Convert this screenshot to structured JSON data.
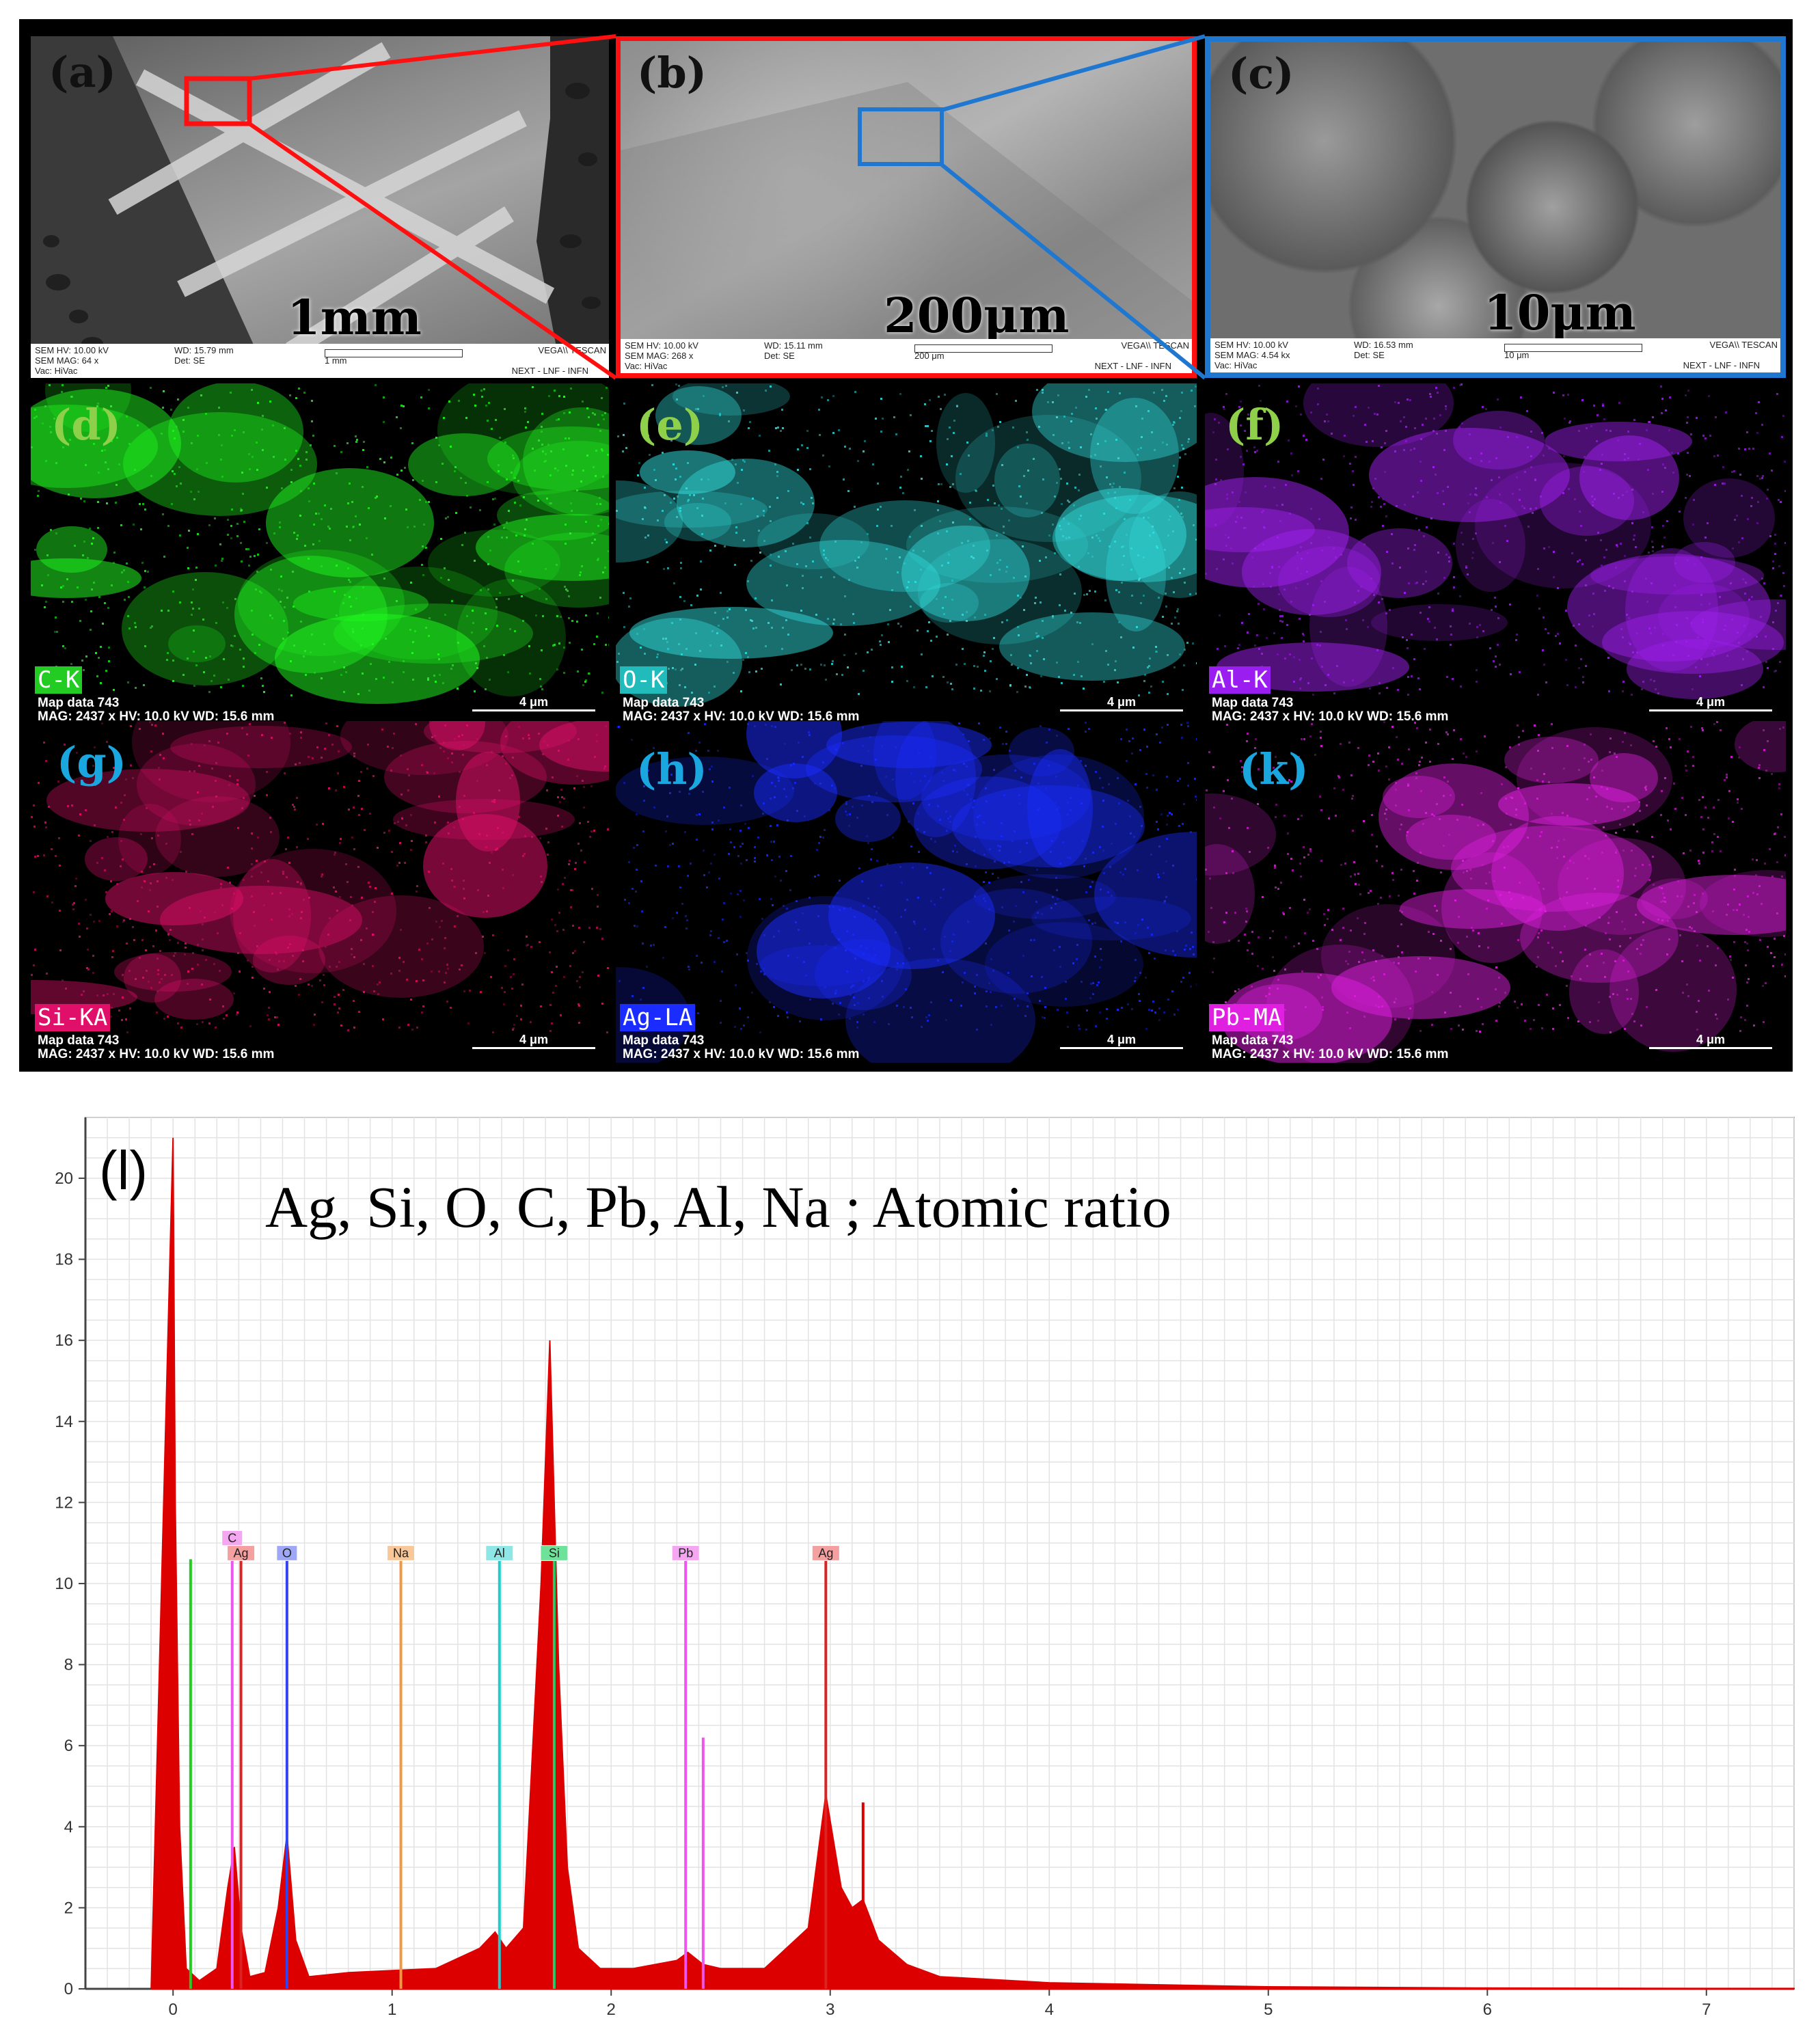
{
  "figure": {
    "panels_top": [
      {
        "label": "(a)",
        "scale": "1mm",
        "footer": [
          "SEM HV: 10.00 kV",
          "WD: 15.79 mm",
          "VEGA\\\\ TESCAN",
          "SEM MAG: 64 x",
          "Det: SE",
          "1 mm",
          "Vac: HiVac",
          "NEXT - LNF - INFN"
        ]
      },
      {
        "label": "(b)",
        "scale": "200μm",
        "footer": [
          "SEM HV: 10.00 kV",
          "WD: 15.11 mm",
          "VEGA\\\\ TESCAN",
          "SEM MAG: 268 x",
          "Det: SE",
          "200 μm",
          "Vac: HiVac",
          "NEXT - LNF - INFN"
        ]
      },
      {
        "label": "(c)",
        "scale": "10μm",
        "footer": [
          "SEM HV: 10.00 kV",
          "WD: 16.53 mm",
          "VEGA\\\\ TESCAN",
          "SEM MAG: 4.54 kx",
          "Det: SE",
          "10 μm",
          "Vac: HiVac",
          "NEXT - LNF - INFN"
        ]
      }
    ],
    "maps": [
      {
        "label": "(d)",
        "element": "C-K",
        "color": "#22ff22",
        "label_color": "#8fd04a",
        "tag_bg": "#22cc22"
      },
      {
        "label": "(e)",
        "element": "O-K",
        "color": "#33e0e0",
        "label_color": "#8fd04a",
        "tag_bg": "#22bbbb"
      },
      {
        "label": "(f)",
        "element": "Al-K",
        "color": "#a020f0",
        "label_color": "#8fd04a",
        "tag_bg": "#9a1ef0"
      },
      {
        "label": "(g)",
        "element": "Si-KA",
        "color": "#e0106a",
        "label_color": "#1aa7e0",
        "tag_bg": "#e0106a"
      },
      {
        "label": "(h)",
        "element": "Ag-LA",
        "color": "#1a2cff",
        "label_color": "#1aa7e0",
        "tag_bg": "#1a2cff"
      },
      {
        "label": "(k)",
        "element": "Pb-MA",
        "color": "#e020e0",
        "label_color": "#1aa7e0",
        "tag_bg": "#e020e0"
      }
    ],
    "map_footer": {
      "line1": "Map data 743",
      "line2": "MAG: 2437 x  HV: 10.0 kV  WD: 15.6 mm",
      "scale": "4 μm"
    }
  },
  "chart_data": {
    "type": "line",
    "panel_label": "(l)",
    "title": "Ag, Si, O, C, Pb, Al, Na ; Atomic ratio",
    "xlabel": "",
    "ylabel": "",
    "xlim": [
      -0.4,
      7.4
    ],
    "ylim": [
      0,
      21.5
    ],
    "x_ticks": [
      0,
      1,
      2,
      3,
      4,
      5,
      6,
      7
    ],
    "y_ticks": [
      0,
      2,
      4,
      6,
      8,
      10,
      12,
      14,
      16,
      18,
      20
    ],
    "grid": true,
    "series": [
      {
        "name": "spectrum",
        "color": "#dd0000",
        "x": [
          -0.1,
          0.0,
          0.01,
          0.03,
          0.06,
          0.12,
          0.2,
          0.25,
          0.28,
          0.31,
          0.35,
          0.42,
          0.48,
          0.52,
          0.56,
          0.62,
          0.8,
          1.0,
          1.2,
          1.4,
          1.47,
          1.52,
          1.6,
          1.68,
          1.72,
          1.76,
          1.8,
          1.85,
          1.95,
          2.1,
          2.3,
          2.35,
          2.42,
          2.5,
          2.7,
          2.9,
          2.98,
          3.05,
          3.1,
          3.15,
          3.22,
          3.35,
          3.5,
          4.0,
          5.0,
          6.0,
          7.0,
          7.4
        ],
        "y": [
          0,
          21,
          12,
          4,
          0.5,
          0.2,
          0.5,
          2.5,
          3.5,
          1.5,
          0.3,
          0.4,
          2.0,
          3.8,
          1.2,
          0.3,
          0.4,
          0.45,
          0.5,
          1.0,
          1.4,
          1.0,
          1.5,
          10.0,
          16.0,
          8.0,
          3.0,
          1.0,
          0.5,
          0.5,
          0.7,
          0.9,
          0.6,
          0.5,
          0.5,
          1.5,
          4.8,
          2.5,
          2.0,
          2.2,
          1.2,
          0.6,
          0.3,
          0.15,
          0.05,
          0.02,
          0.01,
          0.01
        ]
      }
    ],
    "spikes": [
      {
        "x": 0.08,
        "y": 10.6,
        "color": "#22cc22"
      },
      {
        "x": 2.42,
        "y": 6.2,
        "color": "#ee55ee"
      },
      {
        "x": 3.15,
        "y": 4.6,
        "color": "#dd0000"
      }
    ],
    "markers": [
      {
        "label": "C",
        "x": 0.27,
        "height": 10.6,
        "color": "#ee55ee",
        "tag_bg": "#f5a6f0"
      },
      {
        "label": "Ag",
        "x": 0.31,
        "height": 10.6,
        "color": "#dd2222",
        "tag_bg": "#f4a0a0"
      },
      {
        "label": "O",
        "x": 0.52,
        "height": 10.6,
        "color": "#3344ee",
        "tag_bg": "#9fa8f6"
      },
      {
        "label": "Na",
        "x": 1.04,
        "height": 10.6,
        "color": "#ee9944",
        "tag_bg": "#f8c89a"
      },
      {
        "label": "Al",
        "x": 1.49,
        "height": 10.6,
        "color": "#22cccc",
        "tag_bg": "#8ee6e6"
      },
      {
        "label": "Si",
        "x": 1.74,
        "height": 10.6,
        "color": "#22cc66",
        "tag_bg": "#6fe29a"
      },
      {
        "label": "Pb",
        "x": 2.34,
        "height": 10.6,
        "color": "#ee55ee",
        "tag_bg": "#f5a6f0"
      },
      {
        "label": "Ag",
        "x": 2.98,
        "height": 10.6,
        "color": "#dd2222",
        "tag_bg": "#f4a0a0"
      }
    ]
  }
}
